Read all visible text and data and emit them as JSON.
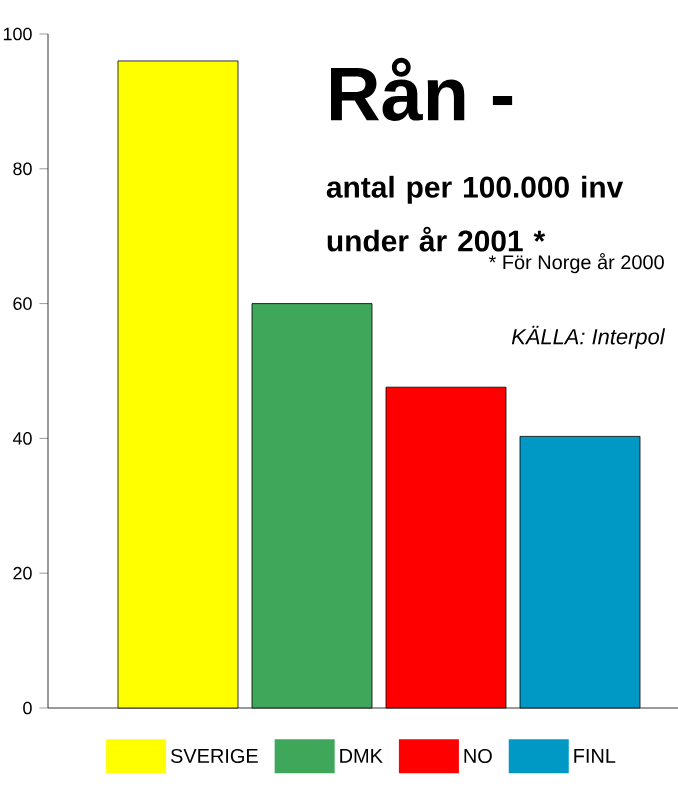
{
  "chart_data": {
    "type": "bar",
    "title": "Rån -",
    "subtitle": "antal per 100.000 inv under år 2001 *",
    "annotations": [
      "* För Norge  år 2000",
      "KÄLLA: Interpol"
    ],
    "categories": [
      null
    ],
    "series": [
      {
        "name": "SVERIGE",
        "color": "#ffff00",
        "values": [
          96
        ]
      },
      {
        "name": "DMK",
        "color": "#3fa75a",
        "values": [
          60
        ]
      },
      {
        "name": "NO",
        "color": "#ff0000",
        "values": [
          47.6
        ]
      },
      {
        "name": "FINL",
        "color": "#0099c6",
        "values": [
          40.3
        ]
      }
    ],
    "ylim": [
      0,
      100
    ],
    "yticks": [
      0,
      20,
      40,
      60,
      80,
      100
    ],
    "grid": false,
    "legend": "bottom"
  }
}
